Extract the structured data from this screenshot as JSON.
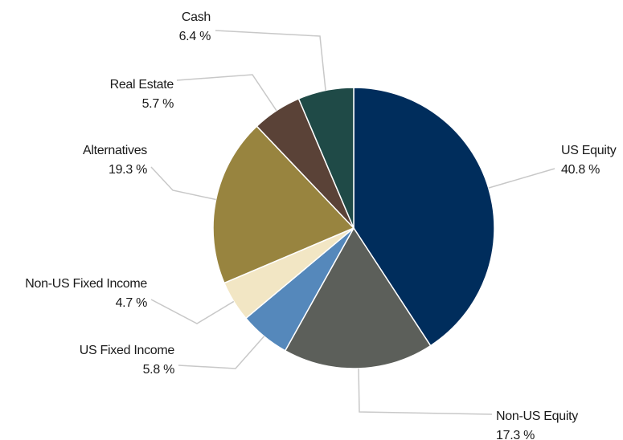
{
  "chart_data": {
    "type": "pie",
    "categories": [
      "US Equity",
      "Non-US Equity",
      "US Fixed Income",
      "Non-US Fixed Income",
      "Alternatives",
      "Real Estate",
      "Cash"
    ],
    "values": [
      40.8,
      17.3,
      5.8,
      4.7,
      19.3,
      5.7,
      6.4
    ],
    "value_labels": [
      "40.8 %",
      "17.3 %",
      "5.8 %",
      "4.7 %",
      "19.3 %",
      "5.7 %",
      "6.4 %"
    ],
    "colors": [
      "#002d5c",
      "#5c5f5a",
      "#5588bb",
      "#f2e6c4",
      "#98843f",
      "#5a4237",
      "#1f4a47"
    ]
  }
}
